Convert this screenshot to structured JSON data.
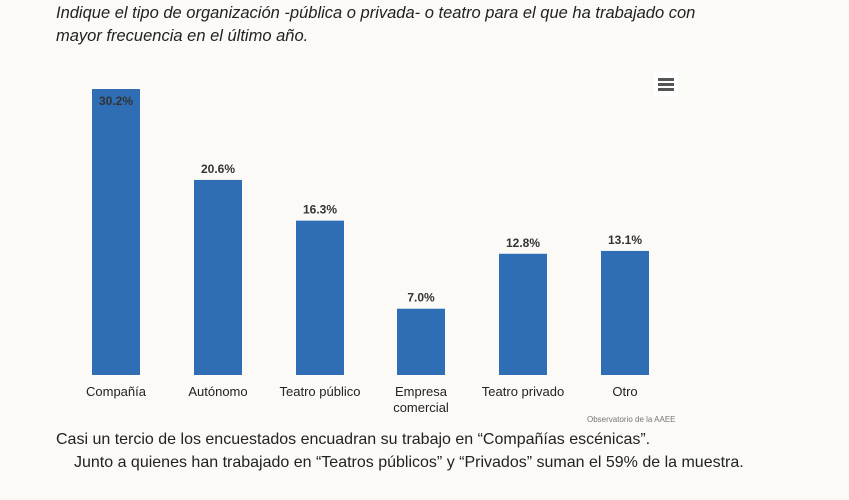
{
  "question": "Indique el tipo de organización -pública o privada- o teatro para el que ha trabajado con mayor frecuencia en el último año.",
  "menu_icon": "hamburger-menu-icon",
  "credit": "Observatorio de la AAEE",
  "summary": {
    "line1": "Casi un tercio de los encuestados encuadran su trabajo en “Compañías escénicas”.",
    "line2": "Junto a quienes han trabajado en “Teatros públicos” y “Privados” suman el 59% de la muestra."
  },
  "chart_data": {
    "type": "bar",
    "categories": [
      "Compañía",
      "Autónomo",
      "Teatro público",
      "Empresa comercial",
      "Teatro privado",
      "Otro"
    ],
    "category_lines": [
      [
        "Compañía"
      ],
      [
        "Autónomo"
      ],
      [
        "Teatro público"
      ],
      [
        "Empresa",
        "comercial"
      ],
      [
        "Teatro privado"
      ],
      [
        "Otro"
      ]
    ],
    "values": [
      30.2,
      20.6,
      16.3,
      7.0,
      12.8,
      13.1
    ],
    "data_labels": [
      "30.2%",
      "20.6%",
      "16.3%",
      "7.0%",
      "12.8%",
      "13.1%"
    ],
    "unit": "%",
    "ylim": [
      0,
      30.2
    ],
    "grid": false,
    "legend": "none",
    "bar_color": "#2f6eb5"
  }
}
